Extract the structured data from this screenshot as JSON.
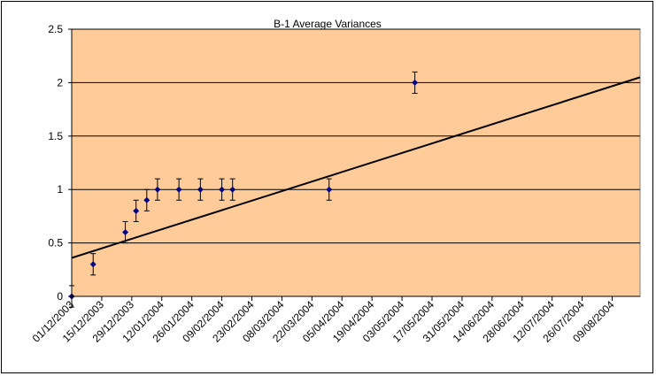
{
  "chart_data": {
    "type": "scatter",
    "title": "B-1 Average Variances",
    "xlabel": "",
    "ylabel": "",
    "x_ticks": [
      "01/12/2003",
      "15/12/2003",
      "29/12/2003",
      "12/01/2004",
      "26/01/2004",
      "09/02/2004",
      "23/02/2004",
      "08/03/2004",
      "22/03/2004",
      "05/04/2004",
      "19/04/2004",
      "03/05/2004",
      "17/05/2004",
      "31/05/2004",
      "14/06/2004",
      "28/06/2004",
      "12/07/2004",
      "26/07/2004",
      "09/08/2004"
    ],
    "y_ticks": [
      "0",
      "0.5",
      "1",
      "1.5",
      "2",
      "2.5"
    ],
    "ylim": [
      0,
      2.5
    ],
    "xlim": [
      "01/12/2003",
      "22/08/2004"
    ],
    "series": [
      {
        "points": [
          {
            "x": "01/12/2003",
            "y": 0
          },
          {
            "x": "11/12/2003",
            "y": 0.3
          },
          {
            "x": "26/12/2003",
            "y": 0.6
          },
          {
            "x": "31/12/2003",
            "y": 0.8
          },
          {
            "x": "05/01/2004",
            "y": 0.9
          },
          {
            "x": "10/01/2004",
            "y": 1.0
          },
          {
            "x": "20/01/2004",
            "y": 1.0
          },
          {
            "x": "30/01/2004",
            "y": 1.0
          },
          {
            "x": "09/02/2004",
            "y": 1.0
          },
          {
            "x": "14/02/2004",
            "y": 1.0
          },
          {
            "x": "30/03/2004",
            "y": 1.0
          },
          {
            "x": "09/05/2004",
            "y": 2.0
          }
        ],
        "error": 0.1,
        "color": "#00007f"
      }
    ],
    "trendline": {
      "type": "linear",
      "start": {
        "x": "01/12/2003",
        "y": 0.36
      },
      "end": {
        "x": "22/08/2004",
        "y": 2.05
      },
      "color": "#000000"
    },
    "grid": true,
    "legend": "none",
    "plot_background": "#ffcc99"
  }
}
